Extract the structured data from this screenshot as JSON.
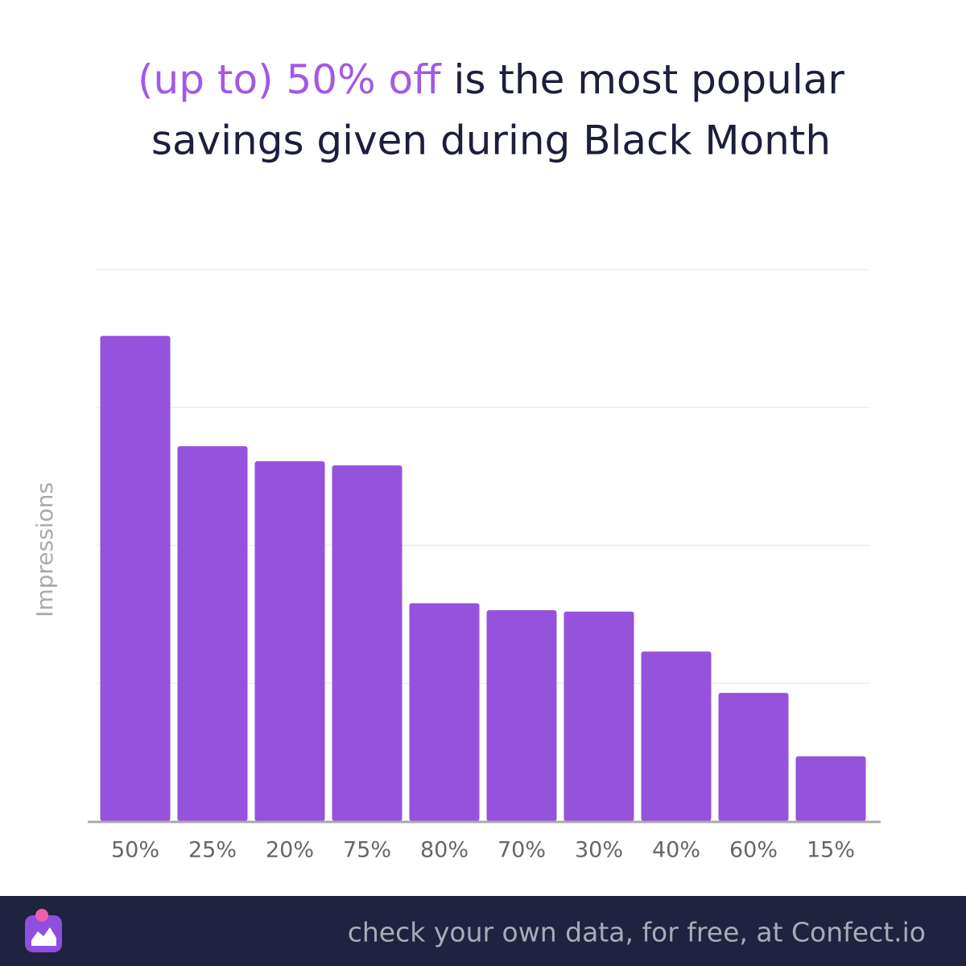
{
  "chart_data": {
    "type": "bar",
    "title_highlight": "(up to) 50% off",
    "title_lines": [
      "is the most popular",
      "savings given during Black Month"
    ],
    "y_label": "Impressions",
    "categories": [
      "50%",
      "25%",
      "20%",
      "75%",
      "80%",
      "70%",
      "30%",
      "40%",
      "60%",
      "15%"
    ],
    "values": [
      3.52,
      2.72,
      2.61,
      2.58,
      1.58,
      1.53,
      1.52,
      1.23,
      0.93,
      0.47
    ],
    "color": "#9552dc",
    "ylim": [
      0,
      4
    ],
    "ygrid": [
      1,
      2,
      3,
      4
    ],
    "grid": true
  },
  "footer": {
    "text": "check your own data, for free, at Confect.io"
  }
}
